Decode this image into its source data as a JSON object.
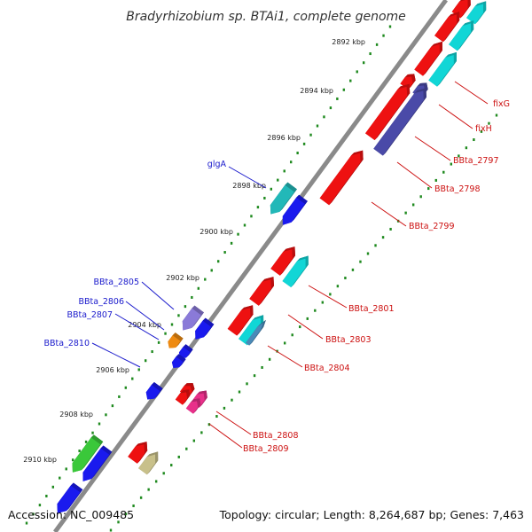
{
  "title": "Bradyrhizobium sp. BTAi1, complete genome",
  "accession": "Accession: NC_009485",
  "topology": "Topology: circular; Length: 8,264,687 bp; Genes: 7,463",
  "kbp_ticks": [
    "2892 kbp",
    "2894 kbp",
    "2896 kbp",
    "2898 kbp",
    "2900 kbp",
    "2902 kbp",
    "2904 kbp",
    "2906 kbp",
    "2908 kbp",
    "2910 kbp"
  ],
  "forward_labels": [
    "glgA",
    "BBta_2805",
    "BBta_2806",
    "BBta_2807",
    "BBta_2810"
  ],
  "reverse_labels": [
    "fixG",
    "fixH",
    "BBta_2797",
    "BBta_2798",
    "BBta_2799",
    "BBta_2801",
    "BBta_2803",
    "BBta_2804",
    "BBta_2808",
    "BBta_2809"
  ],
  "colors": {
    "backbone": "#8a8a8a",
    "forward_label": "#1a1acc",
    "reverse_label": "#cc1010",
    "tick_dot": "#1f8a1f",
    "red": "#ee1111",
    "blue": "#1a1aee",
    "cyan": "#11d6d6",
    "teal": "#22b8b8",
    "navy": "#4a4aa8",
    "purple": "#8a7ad8",
    "orange": "#ee8a11",
    "magenta": "#e8308a",
    "green": "#3ac83a",
    "khaki": "#c8c08a",
    "steel": "#4a8ab8"
  }
}
